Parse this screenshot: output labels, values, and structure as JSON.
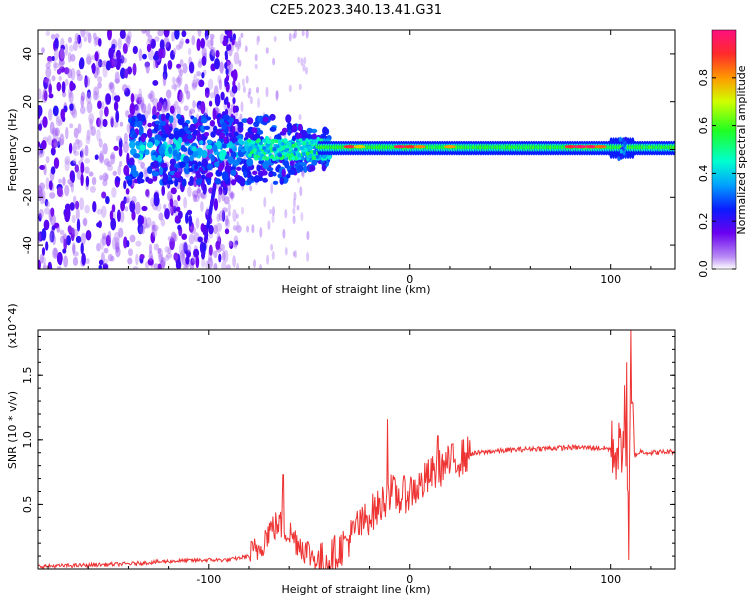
{
  "title": "C2E5.2023.340.13.41.G31",
  "chart_data": [
    {
      "type": "heatmap",
      "xlabel": "Height of straight line (km)",
      "ylabel": "Frequency (Hz)",
      "xlim": [
        -185,
        132
      ],
      "ylim": [
        -50,
        50
      ],
      "xticks": [
        -100,
        0,
        100
      ],
      "yticks": [
        -40,
        -20,
        0,
        20,
        40
      ],
      "colorbar": {
        "label": "Normalized spectral amplitude",
        "range": [
          0,
          1
        ],
        "ticks": [
          "0.0",
          "0.2",
          "0.4",
          "0.6",
          "0.8"
        ],
        "colors": [
          "#ffffff",
          "#b98cf5",
          "#6a00f0",
          "#0a1cff",
          "#00a0ff",
          "#00ffd0",
          "#20ff20",
          "#d0ff00",
          "#ff9900",
          "#ff2a2a",
          "#ff1080"
        ]
      },
      "features": [
        {
          "x_range": [
            -185,
            -90
          ],
          "f_range": [
            -50,
            50
          ],
          "amplitude": 0.15,
          "note": "scattered noise"
        },
        {
          "x_range": [
            -105,
            -95
          ],
          "f_range": [
            -45,
            -20
          ],
          "amplitude": 0.2,
          "note": "slanted streak"
        },
        {
          "x_range": [
            -140,
            -45
          ],
          "f_range": [
            -12,
            12
          ],
          "amplitude": 0.25,
          "note": "broad blob"
        },
        {
          "x_range": [
            -45,
            132
          ],
          "f_range": [
            -3,
            3
          ],
          "amplitude": 0.6,
          "note": "narrow band near 0 Hz"
        },
        {
          "x_range": [
            75,
            98
          ],
          "f_range": [
            0.5,
            2
          ],
          "amplitude": 0.95,
          "note": "peak"
        }
      ]
    },
    {
      "type": "line",
      "xlabel": "Height of straight line (km)",
      "ylabel": "SNR (10 * v/v)",
      "multiplier": "(x10^4)",
      "xlim": [
        -185,
        132
      ],
      "ylim": [
        0,
        1.85
      ],
      "xticks": [
        -100,
        0,
        100
      ],
      "yticks": [
        0.5,
        1.0,
        1.5
      ],
      "ytick_labels": [
        "0.5",
        "1.0",
        "1.5"
      ],
      "color": "#ee3333",
      "x": [
        -185,
        -160,
        -140,
        -120,
        -100,
        -90,
        -80,
        -75,
        -70,
        -65,
        -60,
        -55,
        -50,
        -45,
        -40,
        -35,
        -30,
        -25,
        -20,
        -15,
        -10,
        -5,
        0,
        5,
        10,
        15,
        20,
        25,
        30,
        40,
        50,
        60,
        70,
        80,
        90,
        100,
        105,
        107,
        109,
        110,
        112,
        115,
        120,
        132
      ],
      "y": [
        0.02,
        0.03,
        0.04,
        0.06,
        0.07,
        0.07,
        0.1,
        0.16,
        0.3,
        0.35,
        0.28,
        0.2,
        0.12,
        0.06,
        0.08,
        0.15,
        0.24,
        0.32,
        0.42,
        0.48,
        0.6,
        0.55,
        0.6,
        0.64,
        0.72,
        0.78,
        0.82,
        0.86,
        0.89,
        0.91,
        0.92,
        0.93,
        0.935,
        0.94,
        0.94,
        0.93,
        0.9,
        1.2,
        0.35,
        1.4,
        0.88,
        0.91,
        0.9,
        0.91
      ],
      "spikes": [
        {
          "x": -63,
          "y": 0.73
        },
        {
          "x": -26,
          "y": 0.45
        },
        {
          "x": -11,
          "y": 1.16
        },
        {
          "x": 14,
          "y": 1.03
        },
        {
          "x": 108,
          "y": 1.6
        },
        {
          "x": 109,
          "y": 0.07
        },
        {
          "x": 110,
          "y": 1.85
        }
      ]
    }
  ]
}
